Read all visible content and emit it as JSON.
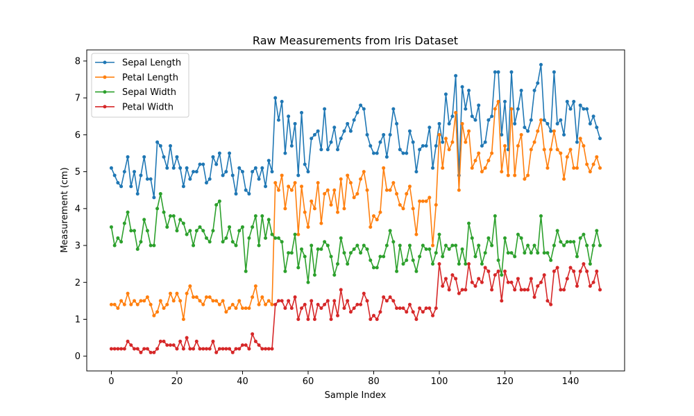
{
  "chart_data": {
    "type": "line",
    "title": "Raw Measurements from Iris Dataset",
    "xlabel": "Sample Index",
    "ylabel": "Measurement (cm)",
    "xlim": [
      -7.5,
      156.5
    ],
    "ylim": [
      -0.4,
      8.3
    ],
    "xticks": [
      0,
      20,
      40,
      60,
      80,
      100,
      120,
      140
    ],
    "yticks": [
      0,
      1,
      2,
      3,
      4,
      5,
      6,
      7,
      8
    ],
    "grid": false,
    "legend_position": "top-left",
    "markers": true,
    "x_start": 0,
    "series": [
      {
        "name": "Sepal Length",
        "color": "#1f77b4",
        "values": [
          5.1,
          4.9,
          4.7,
          4.6,
          5.0,
          5.4,
          4.6,
          5.0,
          4.4,
          4.9,
          5.4,
          4.8,
          4.8,
          4.3,
          5.8,
          5.7,
          5.4,
          5.1,
          5.7,
          5.1,
          5.4,
          5.1,
          4.6,
          5.1,
          4.8,
          5.0,
          5.0,
          5.2,
          5.2,
          4.7,
          4.8,
          5.4,
          5.2,
          5.5,
          4.9,
          5.0,
          5.5,
          4.9,
          4.4,
          5.1,
          5.0,
          4.5,
          4.4,
          5.0,
          5.1,
          4.8,
          5.1,
          4.6,
          5.3,
          5.0,
          7.0,
          6.4,
          6.9,
          5.5,
          6.5,
          5.7,
          6.3,
          4.9,
          6.6,
          5.2,
          5.0,
          5.9,
          6.0,
          6.1,
          5.6,
          6.7,
          5.6,
          5.8,
          6.2,
          5.6,
          5.9,
          6.1,
          6.3,
          6.1,
          6.4,
          6.6,
          6.8,
          6.7,
          6.0,
          5.7,
          5.5,
          5.5,
          5.8,
          6.0,
          5.4,
          6.0,
          6.7,
          6.3,
          5.6,
          5.5,
          5.5,
          6.1,
          5.8,
          5.0,
          5.6,
          5.7,
          5.7,
          6.2,
          5.1,
          5.7,
          6.3,
          5.8,
          7.1,
          6.3,
          6.5,
          7.6,
          4.9,
          7.3,
          6.7,
          7.2,
          6.5,
          6.4,
          6.8,
          5.7,
          5.8,
          6.4,
          6.5,
          7.7,
          7.7,
          6.0,
          6.9,
          5.6,
          7.7,
          6.3,
          6.7,
          7.2,
          6.2,
          6.1,
          6.4,
          7.2,
          7.4,
          7.9,
          6.4,
          6.3,
          6.1,
          7.7,
          6.3,
          6.4,
          6.0,
          6.9,
          6.7,
          6.9,
          5.8,
          6.8,
          6.7,
          6.7,
          6.3,
          6.5,
          6.2,
          5.9
        ]
      },
      {
        "name": "Petal Length",
        "color": "#ff7f0e",
        "values": [
          1.4,
          1.4,
          1.3,
          1.5,
          1.4,
          1.7,
          1.4,
          1.5,
          1.4,
          1.5,
          1.5,
          1.6,
          1.4,
          1.1,
          1.2,
          1.5,
          1.3,
          1.4,
          1.7,
          1.5,
          1.7,
          1.5,
          1.0,
          1.7,
          1.9,
          1.6,
          1.6,
          1.5,
          1.4,
          1.6,
          1.6,
          1.5,
          1.5,
          1.4,
          1.5,
          1.2,
          1.3,
          1.4,
          1.3,
          1.5,
          1.3,
          1.3,
          1.3,
          1.6,
          1.9,
          1.4,
          1.6,
          1.4,
          1.5,
          1.4,
          4.7,
          4.5,
          4.9,
          4.0,
          4.6,
          4.5,
          4.7,
          3.3,
          4.6,
          3.9,
          3.5,
          4.2,
          4.0,
          4.7,
          3.6,
          4.4,
          4.5,
          4.1,
          4.5,
          3.9,
          4.8,
          4.0,
          4.9,
          4.7,
          4.3,
          4.4,
          4.8,
          5.0,
          4.5,
          3.5,
          3.8,
          3.7,
          3.9,
          5.1,
          4.5,
          4.5,
          4.7,
          4.4,
          4.1,
          4.0,
          4.4,
          4.6,
          4.0,
          3.3,
          4.2,
          4.2,
          4.2,
          4.3,
          3.0,
          4.1,
          6.0,
          5.1,
          5.9,
          5.6,
          5.8,
          6.6,
          4.5,
          6.3,
          5.8,
          6.1,
          5.1,
          5.3,
          5.5,
          5.0,
          5.1,
          5.3,
          5.5,
          6.7,
          6.9,
          5.0,
          5.7,
          4.9,
          6.7,
          4.9,
          5.7,
          6.0,
          4.8,
          4.9,
          5.6,
          5.8,
          6.1,
          6.4,
          5.6,
          5.1,
          5.6,
          6.1,
          5.6,
          5.5,
          4.8,
          5.4,
          5.6,
          5.1,
          5.1,
          5.9,
          5.7,
          5.2,
          5.0,
          5.2,
          5.4,
          5.1
        ]
      },
      {
        "name": "Sepal Width",
        "color": "#2ca02c",
        "values": [
          3.5,
          3.0,
          3.2,
          3.1,
          3.6,
          3.9,
          3.4,
          3.4,
          2.9,
          3.1,
          3.7,
          3.4,
          3.0,
          3.0,
          4.0,
          4.4,
          3.9,
          3.5,
          3.8,
          3.8,
          3.4,
          3.7,
          3.6,
          3.3,
          3.4,
          3.0,
          3.4,
          3.5,
          3.4,
          3.2,
          3.1,
          3.4,
          4.1,
          4.2,
          3.1,
          3.2,
          3.5,
          3.1,
          3.0,
          3.4,
          3.5,
          2.3,
          3.2,
          3.5,
          3.8,
          3.0,
          3.8,
          3.2,
          3.7,
          3.3,
          3.2,
          3.2,
          3.1,
          2.3,
          2.8,
          2.8,
          3.3,
          2.4,
          2.9,
          2.7,
          2.0,
          3.0,
          2.2,
          2.9,
          2.9,
          3.1,
          3.0,
          2.7,
          2.2,
          2.5,
          3.2,
          2.8,
          2.5,
          2.8,
          2.9,
          3.0,
          2.8,
          3.0,
          2.9,
          2.6,
          2.4,
          2.4,
          2.7,
          2.7,
          3.0,
          3.4,
          3.1,
          2.3,
          3.0,
          2.5,
          2.6,
          3.0,
          2.6,
          2.3,
          2.7,
          3.0,
          2.9,
          2.9,
          2.5,
          2.8,
          3.3,
          2.7,
          3.0,
          2.9,
          3.0,
          3.0,
          2.5,
          2.9,
          2.5,
          3.6,
          3.2,
          2.7,
          3.0,
          2.5,
          2.8,
          3.2,
          3.0,
          3.8,
          2.6,
          2.2,
          3.2,
          2.8,
          2.8,
          2.7,
          3.3,
          3.2,
          2.8,
          3.0,
          2.8,
          3.0,
          2.8,
          3.8,
          2.8,
          2.8,
          2.6,
          3.0,
          3.4,
          3.1,
          3.0,
          3.1,
          3.1,
          3.1,
          2.7,
          3.2,
          3.3,
          3.0,
          2.5,
          3.0,
          3.4,
          3.0
        ]
      },
      {
        "name": "Petal Width",
        "color": "#d62728",
        "values": [
          0.2,
          0.2,
          0.2,
          0.2,
          0.2,
          0.4,
          0.3,
          0.2,
          0.2,
          0.1,
          0.2,
          0.2,
          0.1,
          0.1,
          0.2,
          0.4,
          0.4,
          0.3,
          0.3,
          0.3,
          0.2,
          0.4,
          0.2,
          0.5,
          0.2,
          0.2,
          0.4,
          0.2,
          0.2,
          0.2,
          0.2,
          0.4,
          0.1,
          0.2,
          0.2,
          0.2,
          0.2,
          0.1,
          0.2,
          0.2,
          0.3,
          0.3,
          0.2,
          0.6,
          0.4,
          0.3,
          0.2,
          0.2,
          0.2,
          0.2,
          1.4,
          1.5,
          1.5,
          1.3,
          1.5,
          1.3,
          1.6,
          1.0,
          1.3,
          1.4,
          1.0,
          1.5,
          1.0,
          1.4,
          1.3,
          1.4,
          1.5,
          1.0,
          1.5,
          1.1,
          1.8,
          1.3,
          1.5,
          1.2,
          1.3,
          1.4,
          1.4,
          1.7,
          1.5,
          1.0,
          1.1,
          1.0,
          1.2,
          1.6,
          1.5,
          1.6,
          1.5,
          1.3,
          1.3,
          1.3,
          1.2,
          1.4,
          1.2,
          1.0,
          1.3,
          1.2,
          1.3,
          1.3,
          1.1,
          1.3,
          2.5,
          1.9,
          2.1,
          1.8,
          2.2,
          2.1,
          1.7,
          1.8,
          1.8,
          2.5,
          2.0,
          1.9,
          2.1,
          2.0,
          2.4,
          2.3,
          1.8,
          2.2,
          2.3,
          1.5,
          2.3,
          2.0,
          2.0,
          1.8,
          2.1,
          1.8,
          1.8,
          1.8,
          2.1,
          1.6,
          1.9,
          2.0,
          2.2,
          1.5,
          1.4,
          2.3,
          2.4,
          1.8,
          1.8,
          2.1,
          2.4,
          2.3,
          1.9,
          2.3,
          2.5,
          2.3,
          1.9,
          2.0,
          2.3,
          1.8
        ]
      }
    ]
  }
}
